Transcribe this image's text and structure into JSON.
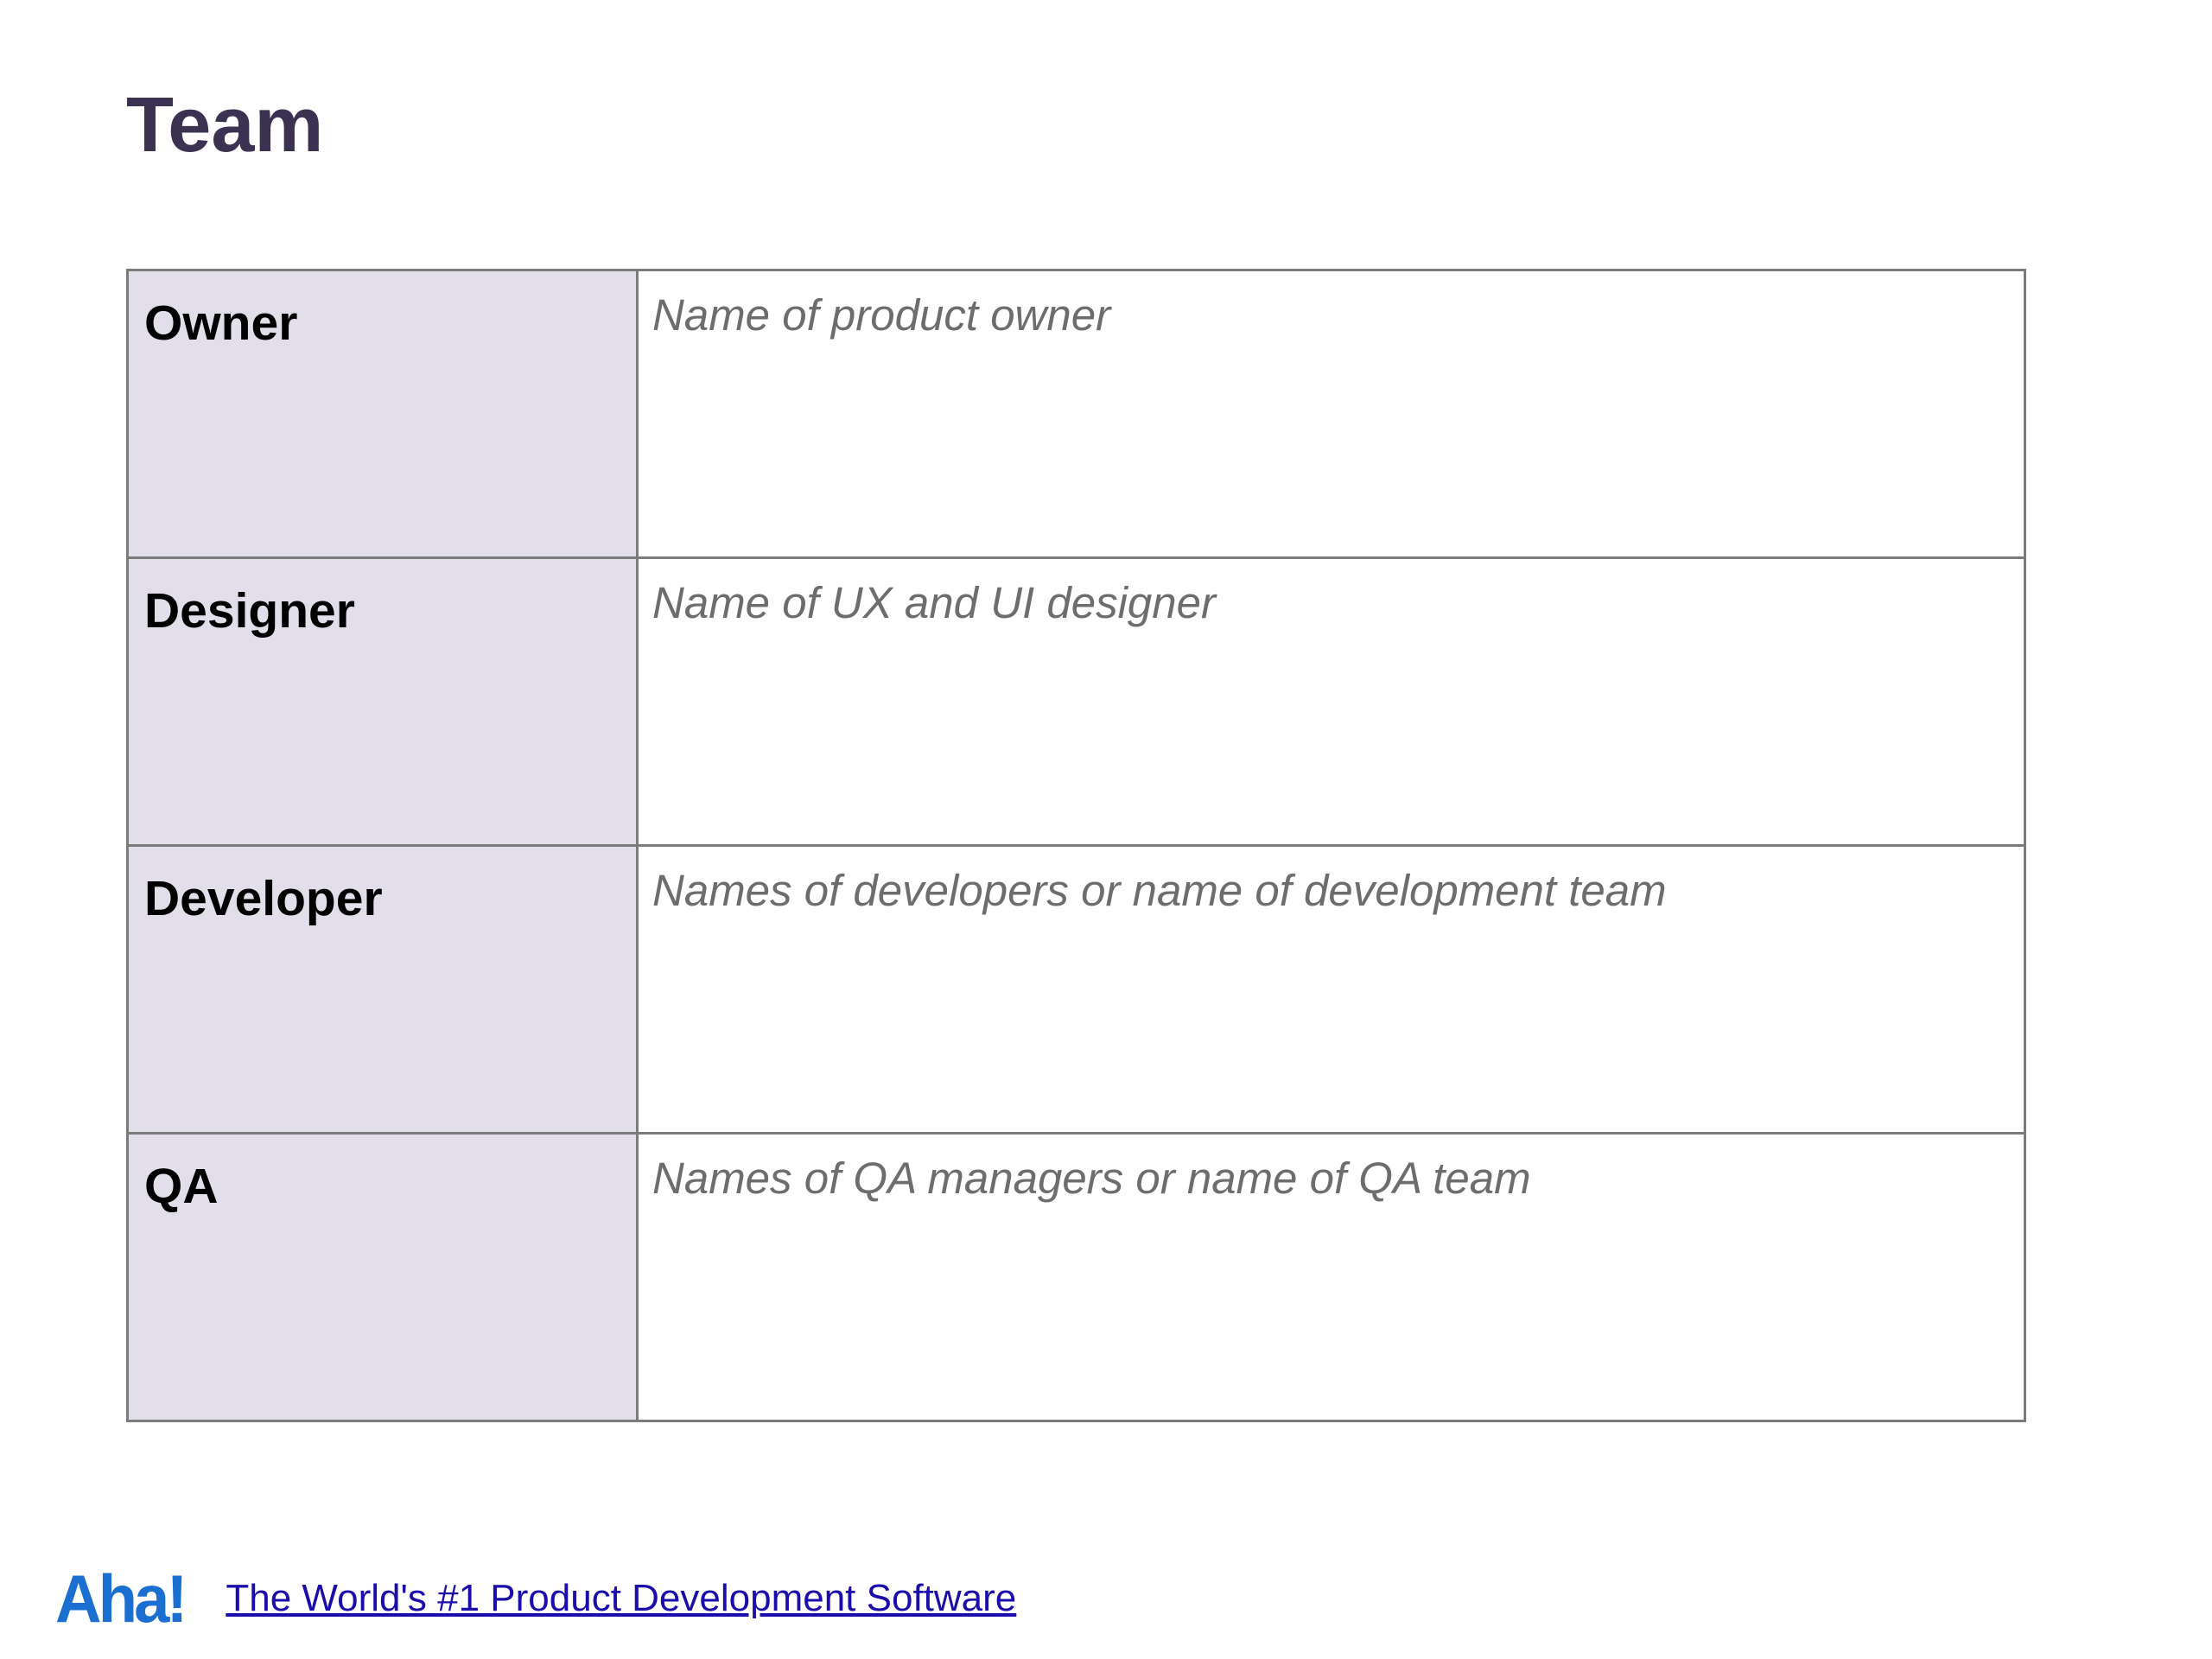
{
  "page": {
    "title": "Team"
  },
  "team_table": {
    "rows": [
      {
        "role": "Owner",
        "placeholder": "Name of product owner"
      },
      {
        "role": "Designer",
        "placeholder": "Name of UX and UI designer"
      },
      {
        "role": "Developer",
        "placeholder": "Names of developers or name of development team"
      },
      {
        "role": "QA",
        "placeholder": "Names of QA managers or name of QA team"
      }
    ]
  },
  "footer": {
    "logo_text": "Aha!",
    "link_text": "The World's #1 Product Development Software"
  },
  "colors": {
    "title": "#3b3150",
    "role_cell_bg": "#e2dfeb",
    "border": "#7b7b7b",
    "placeholder_text": "#6d6d6d",
    "logo": "#1a6fd0",
    "link": "#1a0dab"
  }
}
